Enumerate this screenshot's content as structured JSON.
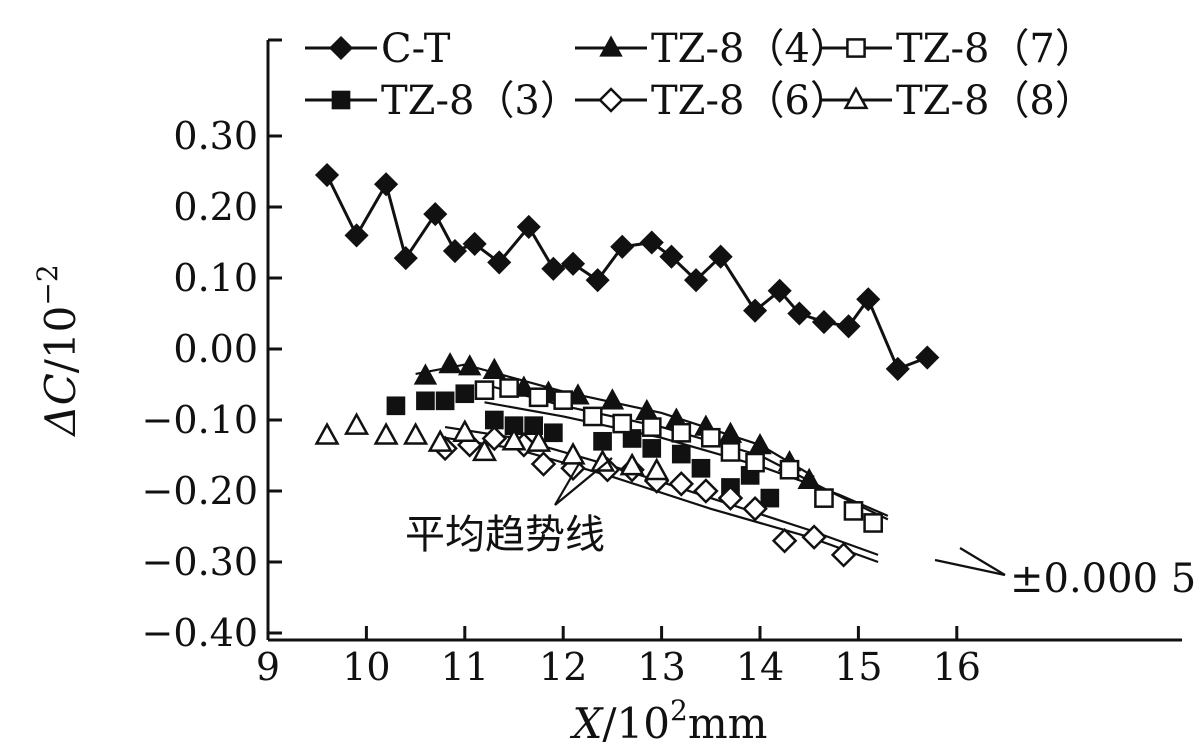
{
  "chart_data": {
    "type": "line",
    "xlabel_var": "X",
    "xlabel_unit": "/10",
    "xlabel_exp": "2",
    "xlabel_tail": "mm",
    "ylabel_var": "ΔC",
    "ylabel_unit": "/10",
    "ylabel_exp": "−2",
    "xlim": [
      9,
      17
    ],
    "ylim": [
      -0.4,
      0.4
    ],
    "xticks": [
      9,
      10,
      11,
      12,
      13,
      14,
      15,
      16
    ],
    "xtick_labels": [
      "9",
      "10",
      "11",
      "12",
      "13",
      "14",
      "15",
      "16"
    ],
    "yticks": [
      0.3,
      0.2,
      0.1,
      0.0,
      -0.1,
      -0.2,
      -0.3,
      -0.4
    ],
    "ytick_labels": [
      "0.30",
      "0.20",
      "0.10",
      "0.00",
      "−0.10",
      "−0.20",
      "−0.30",
      "−0.40"
    ],
    "legend_position": "top",
    "series": [
      {
        "name": "C-T",
        "marker": "diamond-filled",
        "connected": true,
        "points": [
          [
            9.6,
            0.245
          ],
          [
            9.9,
            0.16
          ],
          [
            10.2,
            0.232
          ],
          [
            10.4,
            0.128
          ],
          [
            10.7,
            0.19
          ],
          [
            10.9,
            0.138
          ],
          [
            11.1,
            0.148
          ],
          [
            11.35,
            0.122
          ],
          [
            11.65,
            0.172
          ],
          [
            11.9,
            0.113
          ],
          [
            12.1,
            0.12
          ],
          [
            12.35,
            0.097
          ],
          [
            12.6,
            0.144
          ],
          [
            12.9,
            0.15
          ],
          [
            13.1,
            0.13
          ],
          [
            13.35,
            0.097
          ],
          [
            13.6,
            0.13
          ],
          [
            13.95,
            0.054
          ],
          [
            14.2,
            0.082
          ],
          [
            14.4,
            0.05
          ],
          [
            14.65,
            0.038
          ],
          [
            14.9,
            0.032
          ],
          [
            15.1,
            0.07
          ],
          [
            15.4,
            -0.028
          ],
          [
            15.7,
            -0.012
          ]
        ]
      },
      {
        "name": "TZ-8（3）",
        "marker": "square-filled",
        "connected": false,
        "points": [
          [
            10.3,
            -0.08
          ],
          [
            10.6,
            -0.073
          ],
          [
            10.8,
            -0.073
          ],
          [
            11.0,
            -0.063
          ],
          [
            11.3,
            -0.1
          ],
          [
            11.5,
            -0.108
          ],
          [
            11.7,
            -0.108
          ],
          [
            11.9,
            -0.118
          ],
          [
            12.4,
            -0.13
          ],
          [
            12.7,
            -0.126
          ],
          [
            12.9,
            -0.14
          ],
          [
            13.2,
            -0.148
          ],
          [
            13.4,
            -0.168
          ],
          [
            13.7,
            -0.195
          ],
          [
            13.9,
            -0.178
          ],
          [
            14.1,
            -0.21
          ]
        ]
      },
      {
        "name": "TZ-8（4）",
        "marker": "triangle-filled",
        "connected": false,
        "points": [
          [
            10.6,
            -0.038
          ],
          [
            10.85,
            -0.022
          ],
          [
            11.05,
            -0.025
          ],
          [
            11.3,
            -0.03
          ],
          [
            11.6,
            -0.055
          ],
          [
            11.85,
            -0.062
          ],
          [
            12.15,
            -0.066
          ],
          [
            12.5,
            -0.073
          ],
          [
            12.85,
            -0.088
          ],
          [
            13.15,
            -0.1
          ],
          [
            13.45,
            -0.11
          ],
          [
            13.7,
            -0.12
          ],
          [
            14.0,
            -0.136
          ],
          [
            14.3,
            -0.16
          ],
          [
            14.5,
            -0.185
          ]
        ]
      },
      {
        "name": "TZ-8（6）",
        "marker": "diamond-open",
        "connected": false,
        "points": [
          [
            10.8,
            -0.14
          ],
          [
            11.05,
            -0.135
          ],
          [
            11.3,
            -0.126
          ],
          [
            11.6,
            -0.135
          ],
          [
            11.8,
            -0.162
          ],
          [
            12.1,
            -0.168
          ],
          [
            12.45,
            -0.17
          ],
          [
            12.7,
            -0.17
          ],
          [
            12.95,
            -0.186
          ],
          [
            13.2,
            -0.19
          ],
          [
            13.45,
            -0.2
          ],
          [
            13.7,
            -0.21
          ],
          [
            13.95,
            -0.225
          ],
          [
            14.25,
            -0.27
          ],
          [
            14.55,
            -0.265
          ],
          [
            14.85,
            -0.29
          ]
        ]
      },
      {
        "name": "TZ-8（7）",
        "marker": "square-open",
        "connected": false,
        "points": [
          [
            11.2,
            -0.058
          ],
          [
            11.45,
            -0.055
          ],
          [
            11.75,
            -0.068
          ],
          [
            12.0,
            -0.072
          ],
          [
            12.3,
            -0.095
          ],
          [
            12.6,
            -0.105
          ],
          [
            12.9,
            -0.11
          ],
          [
            13.2,
            -0.118
          ],
          [
            13.5,
            -0.125
          ],
          [
            13.7,
            -0.145
          ],
          [
            13.95,
            -0.16
          ],
          [
            14.3,
            -0.17
          ],
          [
            14.65,
            -0.21
          ],
          [
            14.95,
            -0.228
          ],
          [
            15.15,
            -0.245
          ]
        ]
      },
      {
        "name": "TZ-8（8）",
        "marker": "triangle-open",
        "connected": false,
        "points": [
          [
            9.6,
            -0.122
          ],
          [
            9.9,
            -0.108
          ],
          [
            10.2,
            -0.122
          ],
          [
            10.5,
            -0.122
          ],
          [
            10.75,
            -0.132
          ],
          [
            11.0,
            -0.118
          ],
          [
            11.2,
            -0.145
          ],
          [
            11.5,
            -0.13
          ],
          [
            11.75,
            -0.132
          ],
          [
            12.1,
            -0.15
          ],
          [
            12.4,
            -0.16
          ],
          [
            12.7,
            -0.165
          ],
          [
            12.95,
            -0.172
          ]
        ]
      }
    ],
    "trend_lines": [
      {
        "points": [
          [
            10.5,
            -0.035
          ],
          [
            11.0,
            -0.022
          ],
          [
            12.0,
            -0.06
          ],
          [
            13.0,
            -0.09
          ],
          [
            14.0,
            -0.135
          ],
          [
            14.55,
            -0.18
          ]
        ]
      },
      {
        "points": [
          [
            11.2,
            -0.05
          ],
          [
            12.0,
            -0.08
          ],
          [
            13.0,
            -0.11
          ],
          [
            14.0,
            -0.15
          ],
          [
            14.7,
            -0.2
          ],
          [
            15.3,
            -0.24
          ]
        ]
      },
      {
        "points": [
          [
            11.2,
            -0.075
          ],
          [
            12.0,
            -0.095
          ],
          [
            13.0,
            -0.125
          ],
          [
            14.0,
            -0.165
          ],
          [
            14.8,
            -0.205
          ],
          [
            15.3,
            -0.235
          ]
        ]
      },
      {
        "points": [
          [
            10.8,
            -0.11
          ],
          [
            11.5,
            -0.125
          ],
          [
            12.5,
            -0.165
          ],
          [
            13.5,
            -0.21
          ],
          [
            14.5,
            -0.255
          ],
          [
            15.2,
            -0.29
          ]
        ]
      },
      {
        "points": [
          [
            10.8,
            -0.125
          ],
          [
            11.5,
            -0.14
          ],
          [
            12.5,
            -0.18
          ],
          [
            13.5,
            -0.225
          ],
          [
            14.5,
            -0.265
          ],
          [
            15.2,
            -0.3
          ]
        ]
      }
    ],
    "annotations": {
      "trend_label": "平均趋势线",
      "tolerance_label": "±0.000 5"
    }
  }
}
